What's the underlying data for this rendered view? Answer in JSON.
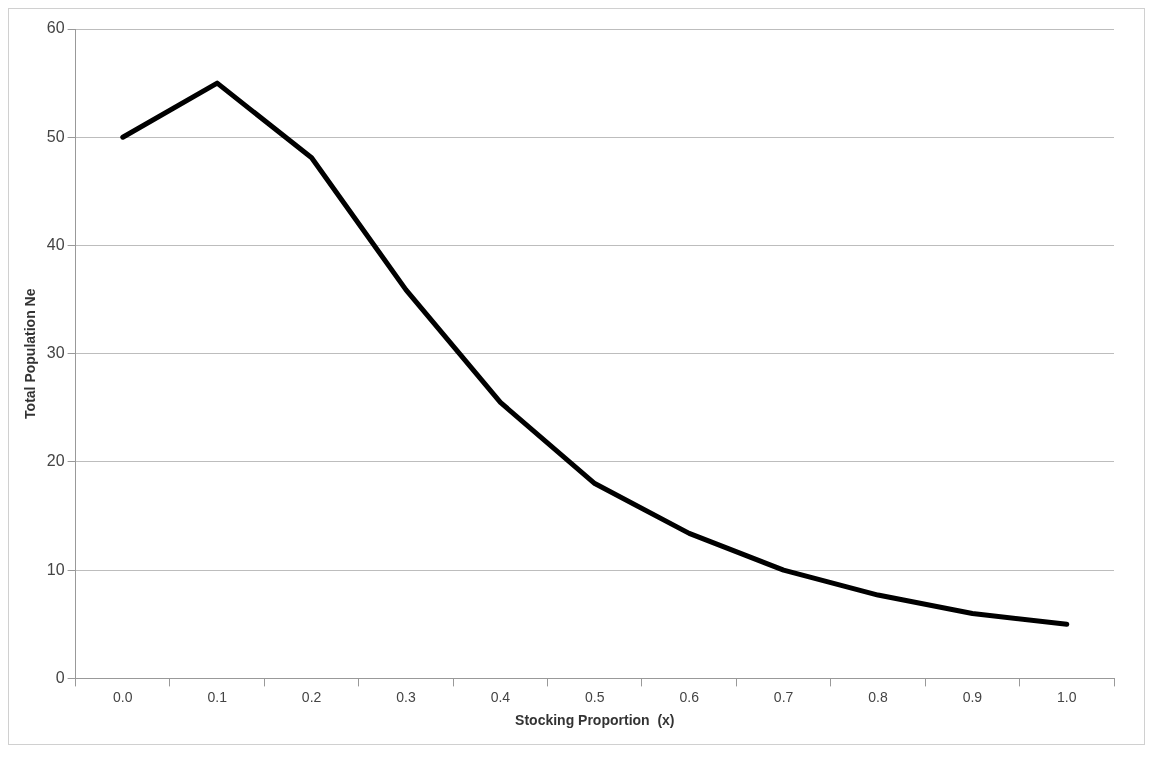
{
  "chart_data": {
    "type": "line",
    "xlabel": "Stocking Proportion  (x)",
    "ylabel": "Total Population Ne",
    "categories": [
      "0.0",
      "0.1",
      "0.2",
      "0.3",
      "0.4",
      "0.5",
      "0.6",
      "0.7",
      "0.8",
      "0.9",
      "1.0"
    ],
    "series": [
      {
        "color": "#000000",
        "values": [
          50,
          55,
          48.1,
          35.9,
          25.5,
          18,
          13.4,
          10,
          7.7,
          6,
          5
        ]
      }
    ],
    "ylim": [
      0,
      60
    ],
    "yticks": [
      0,
      10,
      20,
      30,
      40,
      50,
      60
    ],
    "grid": "y",
    "legend": false,
    "marker": "none",
    "line_style": "solid"
  }
}
